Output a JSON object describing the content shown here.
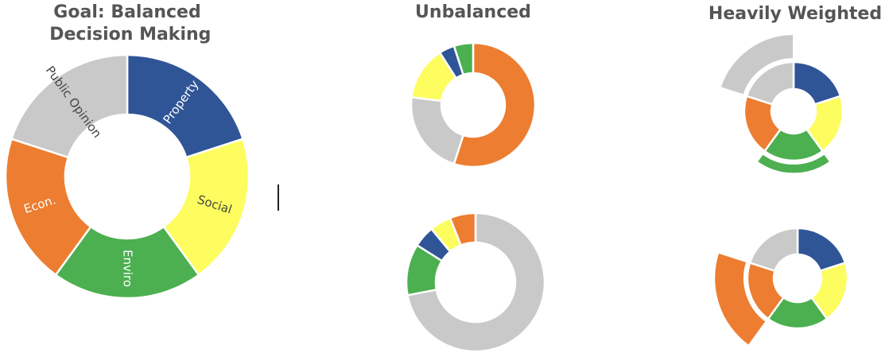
{
  "chart_data": [
    {
      "type": "donut",
      "title": "Goal: Balanced Decision Making",
      "categories": [
        "Property",
        "Social",
        "Enviro",
        "Econ.",
        "Public Opinion"
      ],
      "values": [
        20,
        20,
        20,
        20,
        20
      ],
      "colors": [
        "#2f5597",
        "#fdfd5f",
        "#4caf50",
        "#ed7d31",
        "#c9c9c9"
      ]
    },
    {
      "type": "donut",
      "title": "Unbalanced",
      "values": [
        55,
        22,
        14,
        4,
        5
      ],
      "colors": [
        "#ed7d31",
        "#c9c9c9",
        "#fdfd5f",
        "#2f5597",
        "#4caf50"
      ]
    },
    {
      "type": "donut",
      "values": [
        72,
        12,
        5,
        5,
        6
      ],
      "colors": [
        "#c9c9c9",
        "#4caf50",
        "#2f5597",
        "#fdfd5f",
        "#ed7d31"
      ]
    },
    {
      "type": "weighted-donut",
      "title": "Heavily Weighted",
      "values": [
        20,
        20,
        20,
        20,
        20
      ],
      "weights": [
        1,
        1,
        1.2,
        1,
        1.5
      ],
      "colors": [
        "#2f5597",
        "#fdfd5f",
        "#4caf50",
        "#ed7d31",
        "#c9c9c9"
      ]
    },
    {
      "type": "weighted-donut",
      "values": [
        20,
        20,
        20,
        20,
        20
      ],
      "weights": [
        1,
        1,
        1,
        1.6,
        1
      ],
      "colors": [
        "#2f5597",
        "#fdfd5f",
        "#4caf50",
        "#ed7d31",
        "#c9c9c9"
      ]
    }
  ]
}
